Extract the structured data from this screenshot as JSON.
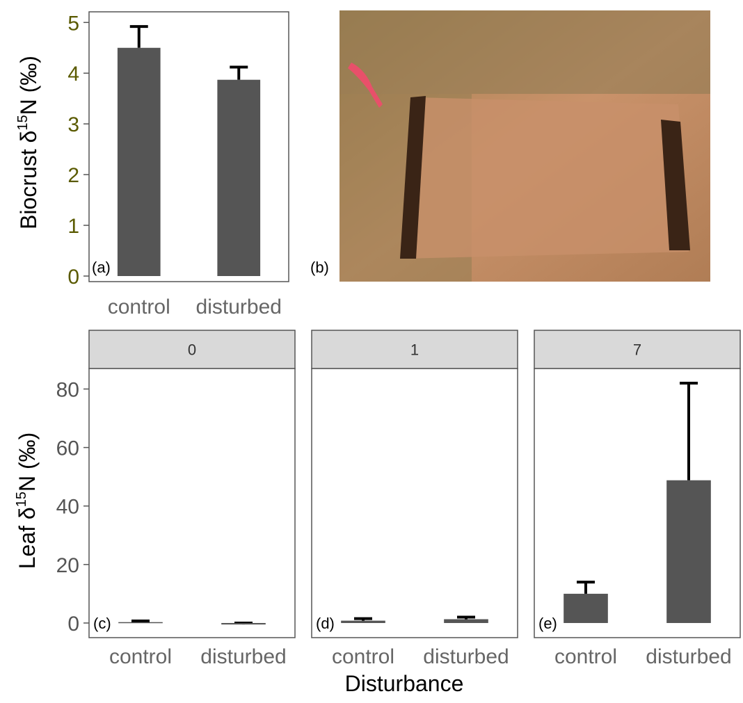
{
  "chart_data": [
    {
      "panel": "(a)",
      "type": "bar",
      "categories": [
        "control",
        "disturbed"
      ],
      "values": [
        4.5,
        3.87
      ],
      "error_upper": [
        4.92,
        4.12
      ],
      "ylabel_main": "Biocrust δ",
      "ylabel_sup": "15",
      "ylabel_tail": "N (‰)",
      "ylim": [
        0,
        5.1
      ],
      "yticks": [
        "0",
        "1",
        "2",
        "3",
        "4",
        "5"
      ],
      "bar_color": "#555555",
      "ytick_color": "#5a5a00"
    },
    {
      "panel": "(b)",
      "type": "photo"
    },
    {
      "type": "bar",
      "facet_var_label": "Disturbance",
      "ylabel_main": "Leaf δ",
      "ylabel_sup": "15",
      "ylabel_tail": "N (‰)",
      "ylim": [
        -5,
        87
      ],
      "yticks": [
        "0",
        "20",
        "40",
        "60",
        "80"
      ],
      "categories": [
        "control",
        "disturbed"
      ],
      "bar_color": "#555555",
      "strip_color": "#d9d9d9",
      "facets": [
        {
          "strip": "0",
          "panel": "(c)",
          "values": [
            0.3,
            -0.5
          ],
          "error_upper": [
            0.7,
            0.0
          ]
        },
        {
          "strip": "1",
          "panel": "(d)",
          "values": [
            0.8,
            1.3
          ],
          "error_upper": [
            1.5,
            2.0
          ]
        },
        {
          "strip": "7",
          "panel": "(e)",
          "values": [
            10.0,
            48.8
          ],
          "error_upper": [
            14.0,
            82.0
          ]
        }
      ]
    }
  ]
}
